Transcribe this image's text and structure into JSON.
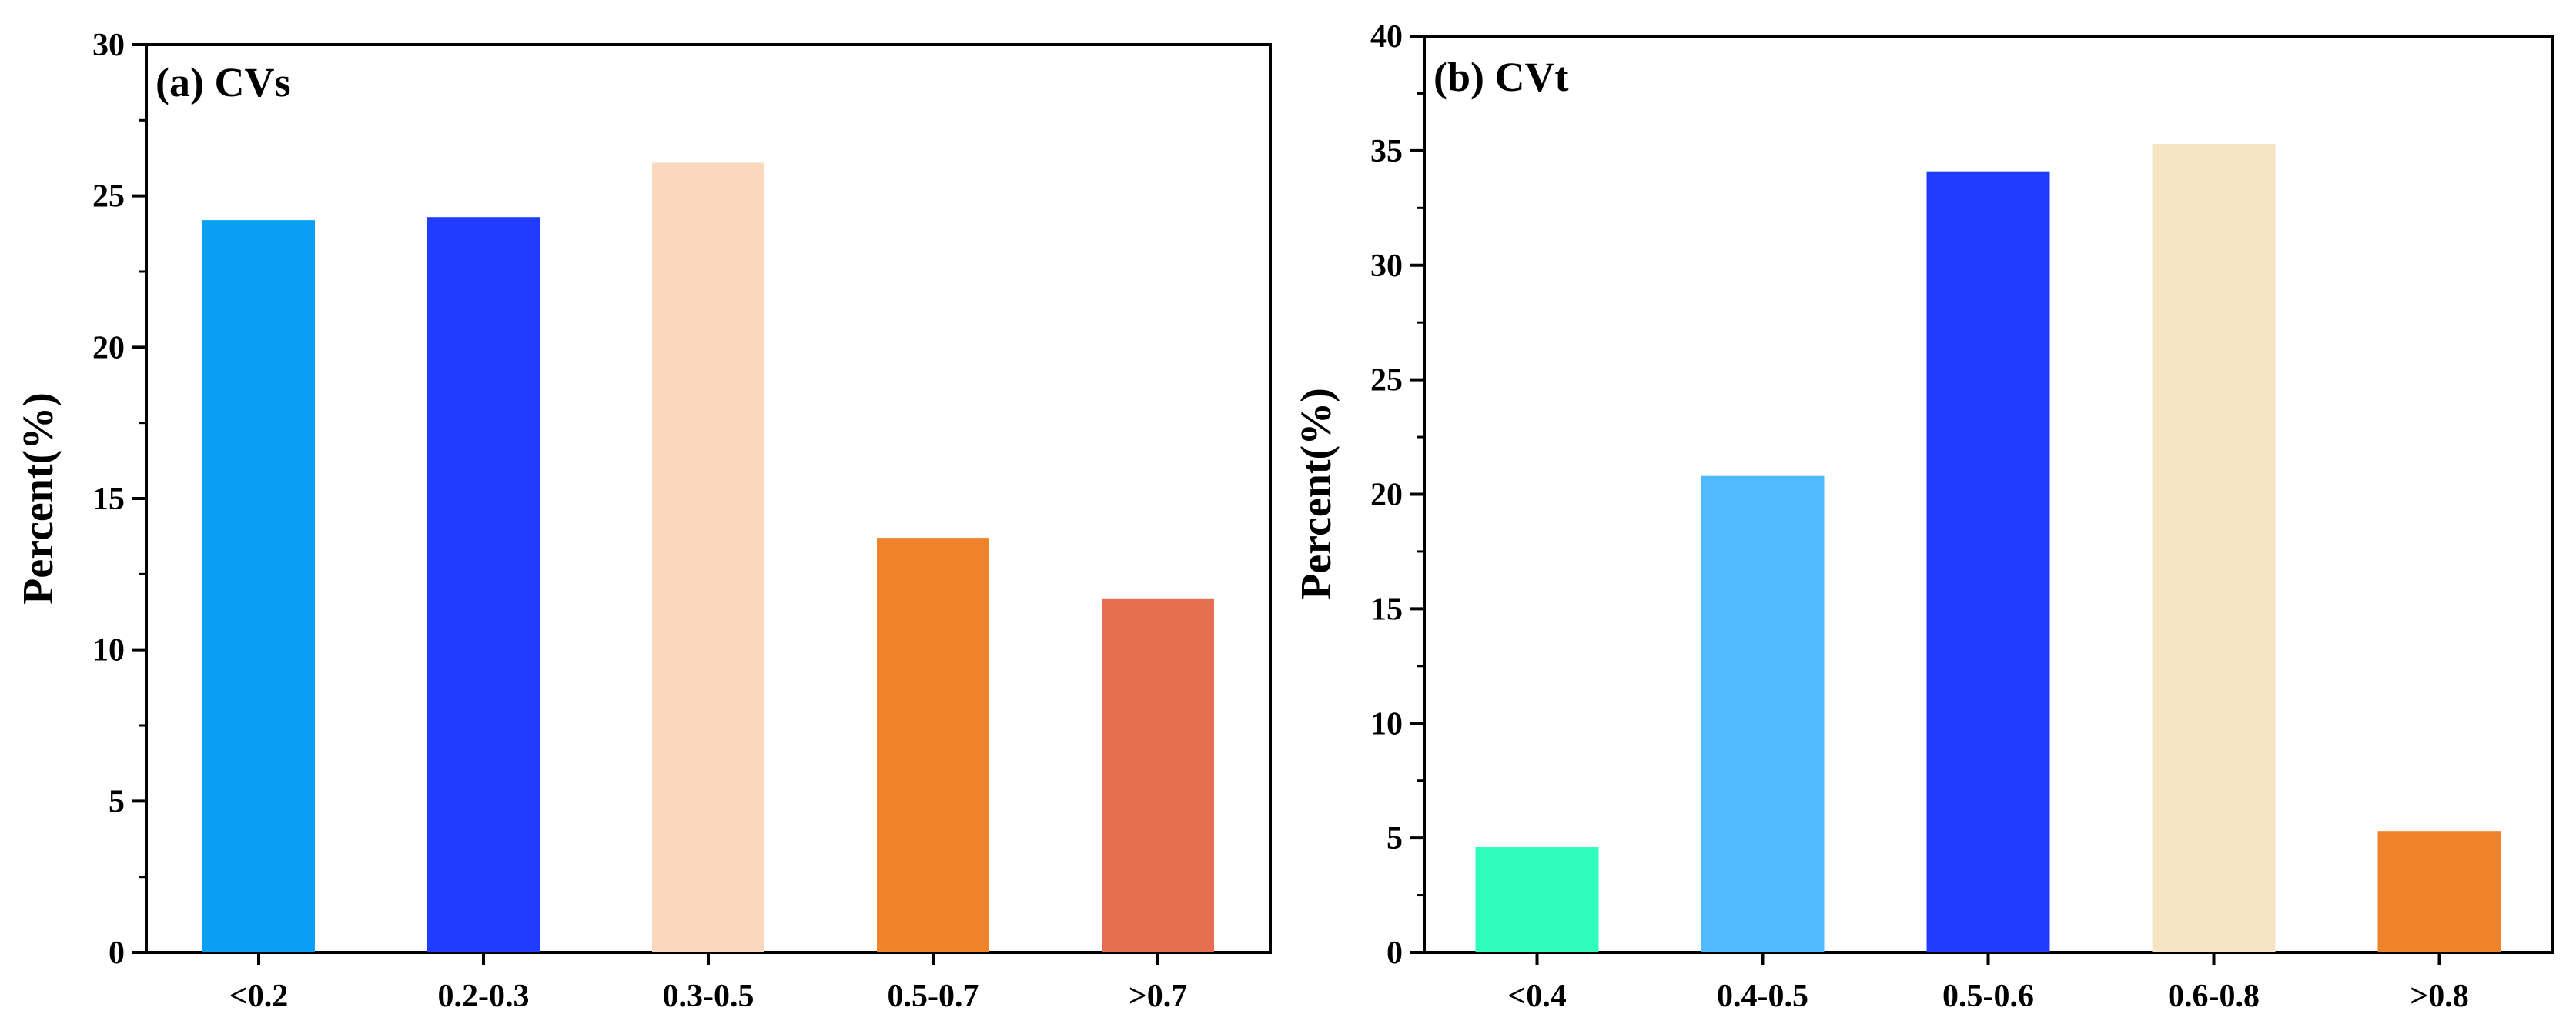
{
  "chart_data": [
    {
      "type": "bar",
      "title": "(a) CVs",
      "xlabel": "",
      "ylabel": "Percent(%)",
      "ylim": [
        0,
        30
      ],
      "yticks": [
        0,
        5,
        10,
        15,
        20,
        25,
        30
      ],
      "categories": [
        "<0.2",
        "0.2-0.3",
        "0.3-0.5",
        "0.5-0.7",
        ">0.7"
      ],
      "values": [
        24.2,
        24.3,
        26.1,
        13.7,
        11.7
      ],
      "colors": [
        "#0A9EF5",
        "#1F3CFF",
        "#F9D8BD",
        "#EE8329",
        "#E56F50"
      ],
      "grid": false
    },
    {
      "type": "bar",
      "title": "(b) CVt",
      "xlabel": "",
      "ylabel": "Percent(%)",
      "ylim": [
        0,
        40
      ],
      "yticks": [
        0,
        5,
        10,
        15,
        20,
        25,
        30,
        35,
        40
      ],
      "categories": [
        "<0.4",
        "0.4-0.5",
        "0.5-0.6",
        "0.6-0.8",
        ">0.8"
      ],
      "values": [
        4.6,
        20.8,
        34.1,
        35.3,
        5.3
      ],
      "colors": [
        "#2EFDBE",
        "#4FBAFD",
        "#1F3CFF",
        "#F7E4C2",
        "#EE8329"
      ],
      "grid": false
    }
  ]
}
